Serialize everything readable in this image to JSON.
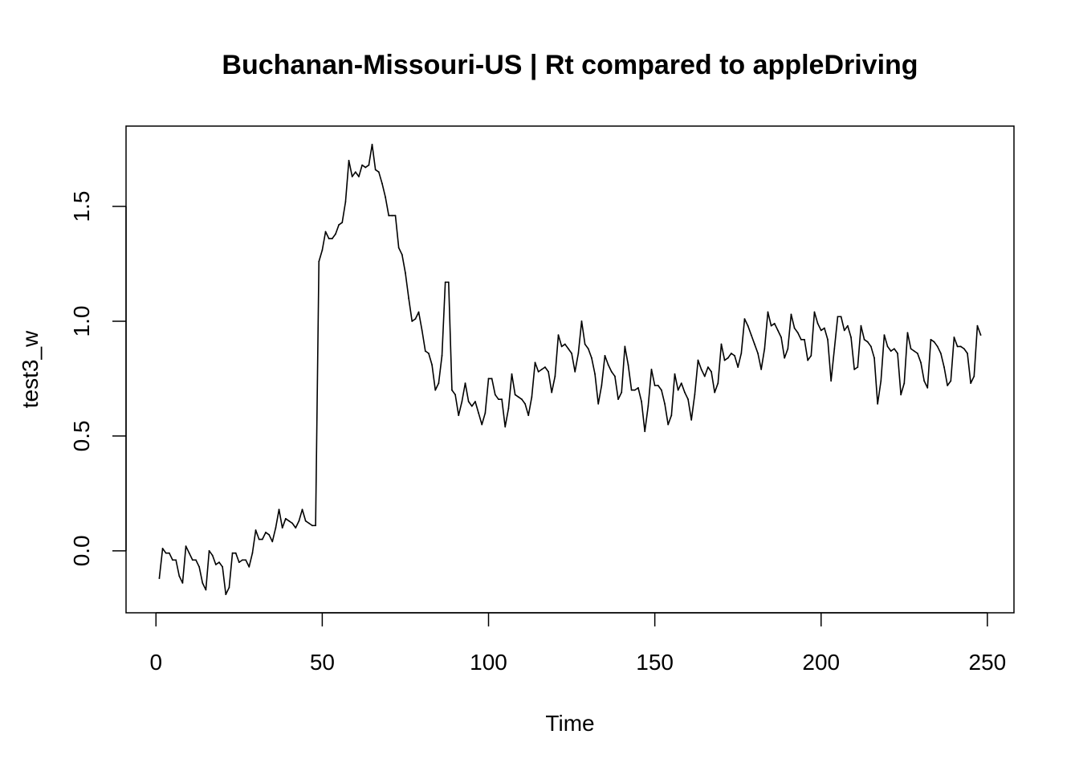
{
  "chart_data": {
    "type": "line",
    "title": "Buchanan-Missouri-US | Rt compared to appleDriving",
    "xlabel": "Time",
    "ylabel": "test3_w",
    "xlim": [
      -9,
      258
    ],
    "ylim": [
      -0.27,
      1.85
    ],
    "grid": false,
    "legend": "none",
    "line_color": "#000000",
    "x_ticks": [
      0,
      50,
      100,
      150,
      200,
      250
    ],
    "x_tick_labels": [
      "0",
      "50",
      "100",
      "150",
      "200",
      "250"
    ],
    "y_ticks": [
      0.0,
      0.5,
      1.0,
      1.5
    ],
    "y_tick_labels": [
      "0.0",
      "0.5",
      "1.0",
      "1.5"
    ],
    "series": [
      {
        "values": [
          -0.12,
          0.01,
          -0.01,
          -0.01,
          -0.04,
          -0.04,
          -0.11,
          -0.14,
          0.02,
          -0.01,
          -0.04,
          -0.04,
          -0.07,
          -0.14,
          -0.17,
          0.0,
          -0.02,
          -0.06,
          -0.05,
          -0.07,
          -0.19,
          -0.16,
          -0.01,
          -0.01,
          -0.05,
          -0.04,
          -0.04,
          -0.07,
          -0.01,
          0.09,
          0.05,
          0.05,
          0.08,
          0.07,
          0.04,
          0.1,
          0.18,
          0.1,
          0.14,
          0.13,
          0.12,
          0.1,
          0.13,
          0.18,
          0.13,
          0.12,
          0.11,
          0.11,
          1.26,
          1.31,
          1.39,
          1.36,
          1.36,
          1.38,
          1.42,
          1.43,
          1.52,
          1.7,
          1.63,
          1.65,
          1.63,
          1.68,
          1.67,
          1.68,
          1.77,
          1.66,
          1.65,
          1.6,
          1.54,
          1.46,
          1.46,
          1.46,
          1.32,
          1.29,
          1.21,
          1.1,
          1.0,
          1.01,
          1.04,
          0.96,
          0.87,
          0.86,
          0.81,
          0.7,
          0.73,
          0.85,
          1.17,
          1.17,
          0.7,
          0.68,
          0.59,
          0.65,
          0.73,
          0.65,
          0.63,
          0.65,
          0.6,
          0.55,
          0.6,
          0.75,
          0.75,
          0.68,
          0.66,
          0.66,
          0.54,
          0.62,
          0.77,
          0.68,
          0.67,
          0.66,
          0.64,
          0.59,
          0.67,
          0.82,
          0.78,
          0.79,
          0.8,
          0.78,
          0.69,
          0.76,
          0.94,
          0.89,
          0.9,
          0.88,
          0.86,
          0.78,
          0.86,
          1.0,
          0.9,
          0.88,
          0.84,
          0.77,
          0.64,
          0.72,
          0.85,
          0.81,
          0.78,
          0.76,
          0.66,
          0.69,
          0.89,
          0.81,
          0.7,
          0.7,
          0.71,
          0.65,
          0.52,
          0.63,
          0.79,
          0.72,
          0.72,
          0.7,
          0.64,
          0.55,
          0.59,
          0.77,
          0.7,
          0.73,
          0.69,
          0.66,
          0.57,
          0.68,
          0.83,
          0.79,
          0.76,
          0.8,
          0.78,
          0.69,
          0.73,
          0.9,
          0.83,
          0.84,
          0.86,
          0.85,
          0.8,
          0.86,
          1.01,
          0.98,
          0.94,
          0.9,
          0.86,
          0.79,
          0.88,
          1.04,
          0.98,
          0.99,
          0.96,
          0.93,
          0.84,
          0.88,
          1.03,
          0.97,
          0.95,
          0.92,
          0.92,
          0.83,
          0.85,
          1.04,
          0.99,
          0.96,
          0.97,
          0.92,
          0.74,
          0.88,
          1.02,
          1.02,
          0.96,
          0.98,
          0.93,
          0.79,
          0.8,
          0.98,
          0.92,
          0.91,
          0.89,
          0.84,
          0.64,
          0.74,
          0.94,
          0.89,
          0.87,
          0.88,
          0.86,
          0.68,
          0.73,
          0.95,
          0.88,
          0.87,
          0.86,
          0.82,
          0.74,
          0.71,
          0.92,
          0.91,
          0.89,
          0.86,
          0.8,
          0.72,
          0.74,
          0.93,
          0.89,
          0.89,
          0.88,
          0.86,
          0.73,
          0.76,
          0.98,
          0.94
        ]
      }
    ]
  }
}
